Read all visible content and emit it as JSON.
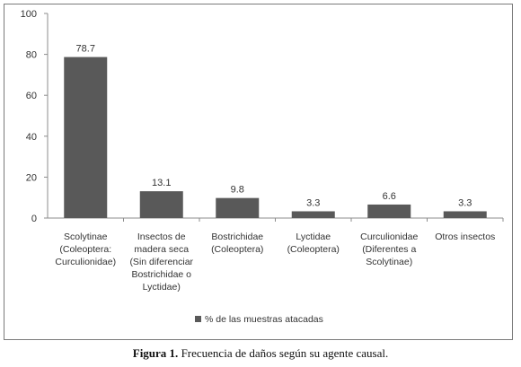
{
  "chart_data": {
    "type": "bar",
    "categories": [
      [
        "Scolytinae",
        "(Coleoptera:",
        "Curculionidae)"
      ],
      [
        "Insectos de",
        "madera seca",
        "(Sin diferenciar",
        "Bostrichidae o",
        "Lyctidae)"
      ],
      [
        "Bostrichidae",
        "(Coleoptera)"
      ],
      [
        "Lyctidae",
        "(Coleoptera)"
      ],
      [
        "Curculionidae",
        "(Diferentes a",
        "Scolytinae)"
      ],
      [
        "Otros insectos"
      ]
    ],
    "series": [
      {
        "name": "% de las muestras atacadas",
        "values": [
          78.7,
          13.1,
          9.8,
          3.3,
          6.6,
          3.3
        ],
        "labels": [
          "78.7",
          "13.1",
          "9.8",
          "3.3",
          "6.6",
          "3.3"
        ],
        "color": "#595959"
      }
    ],
    "ylim": [
      0,
      100
    ],
    "yticks": [
      0,
      20,
      40,
      60,
      80,
      100
    ],
    "grid": false,
    "legend_position": "bottom"
  },
  "caption": {
    "label": "Figura 1.",
    "text": " Frecuencia de daños según su agente causal."
  }
}
